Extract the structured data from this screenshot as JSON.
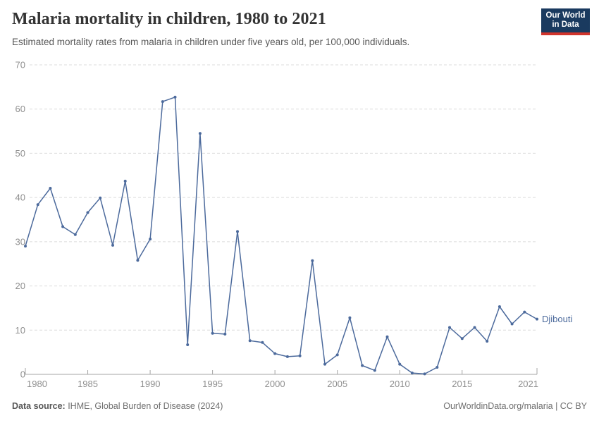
{
  "header": {
    "title": "Malaria mortality in children, 1980 to 2021",
    "subtitle": "Estimated mortality rates from malaria in children under five years old, per 100,000 individuals.",
    "logo": {
      "line1": "Our World",
      "line2": "in Data",
      "bg_color": "#1a3a5f",
      "bar_color": "#d0342c"
    }
  },
  "chart_data": {
    "type": "line",
    "title": "Malaria mortality in children, 1980 to 2021",
    "xlabel": "",
    "ylabel": "",
    "xlim": [
      1980,
      2021
    ],
    "ylim": [
      0,
      70
    ],
    "yticks": [
      0,
      10,
      20,
      30,
      40,
      50,
      60,
      70
    ],
    "xticks": [
      1980,
      1985,
      1990,
      1995,
      2000,
      2005,
      2010,
      2015,
      2021
    ],
    "grid": "dashed-horizontal",
    "legend_position": "end-of-line-label",
    "line_color": "#4c6a9c",
    "x": [
      1980,
      1981,
      1982,
      1983,
      1984,
      1985,
      1986,
      1987,
      1988,
      1989,
      1990,
      1991,
      1992,
      1993,
      1994,
      1995,
      1996,
      1997,
      1998,
      1999,
      2000,
      2001,
      2002,
      2003,
      2004,
      2005,
      2006,
      2007,
      2008,
      2009,
      2010,
      2011,
      2012,
      2013,
      2014,
      2015,
      2016,
      2017,
      2018,
      2019,
      2020,
      2021
    ],
    "series": [
      {
        "name": "Djibouti",
        "values": [
          29.0,
          38.4,
          42.1,
          33.4,
          31.6,
          36.6,
          39.9,
          29.2,
          43.7,
          25.8,
          30.6,
          61.7,
          62.7,
          6.7,
          54.5,
          9.3,
          9.1,
          32.3,
          7.6,
          7.2,
          4.7,
          4.0,
          4.2,
          25.7,
          2.3,
          4.4,
          12.8,
          2.0,
          0.9,
          8.5,
          2.3,
          0.3,
          0.1,
          1.6,
          10.6,
          8.1,
          10.6,
          7.5,
          15.3,
          11.4,
          14.1,
          12.5
        ]
      }
    ]
  },
  "footer": {
    "source_label": "Data source:",
    "source_value": " IHME, Global Burden of Disease (2024)",
    "credit": "OurWorldinData.org/malaria | CC BY"
  }
}
